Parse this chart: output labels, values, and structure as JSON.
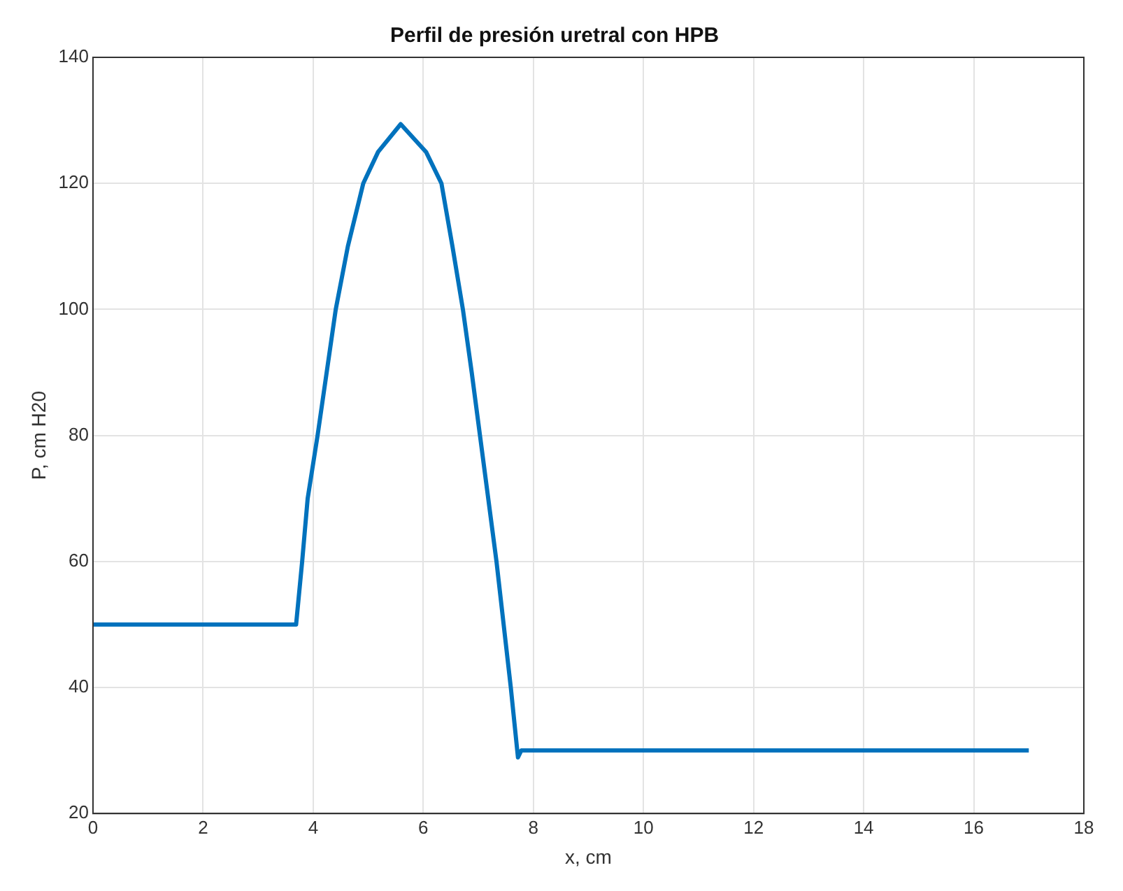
{
  "chart_data": {
    "type": "line",
    "title": "Perfil de presión uretral con HPB",
    "xlabel": "x, cm",
    "ylabel": "P, cm H20",
    "series": [
      {
        "color": "#0072bd",
        "x": [
          0,
          3.69,
          3.8,
          3.9,
          4.08,
          4.41,
          4.63,
          4.91,
          5.18,
          5.59,
          6.05,
          6.33,
          6.53,
          6.72,
          6.88,
          7.03,
          7.33,
          7.59,
          7.72,
          7.78,
          17
        ],
        "values": [
          50,
          50,
          60,
          70,
          80,
          100,
          110,
          120,
          125,
          129.4,
          125,
          120,
          110,
          100,
          90,
          80,
          60,
          40,
          28.9,
          30,
          30
        ]
      }
    ],
    "xlim": [
      0,
      18
    ],
    "xticks": [
      0,
      2,
      4,
      6,
      8,
      10,
      12,
      14,
      16,
      18
    ],
    "ylim": [
      20,
      140
    ],
    "yticks": [
      20,
      40,
      60,
      80,
      100,
      120,
      140
    ],
    "grid": true,
    "marker": "none",
    "line_style": "solid"
  }
}
